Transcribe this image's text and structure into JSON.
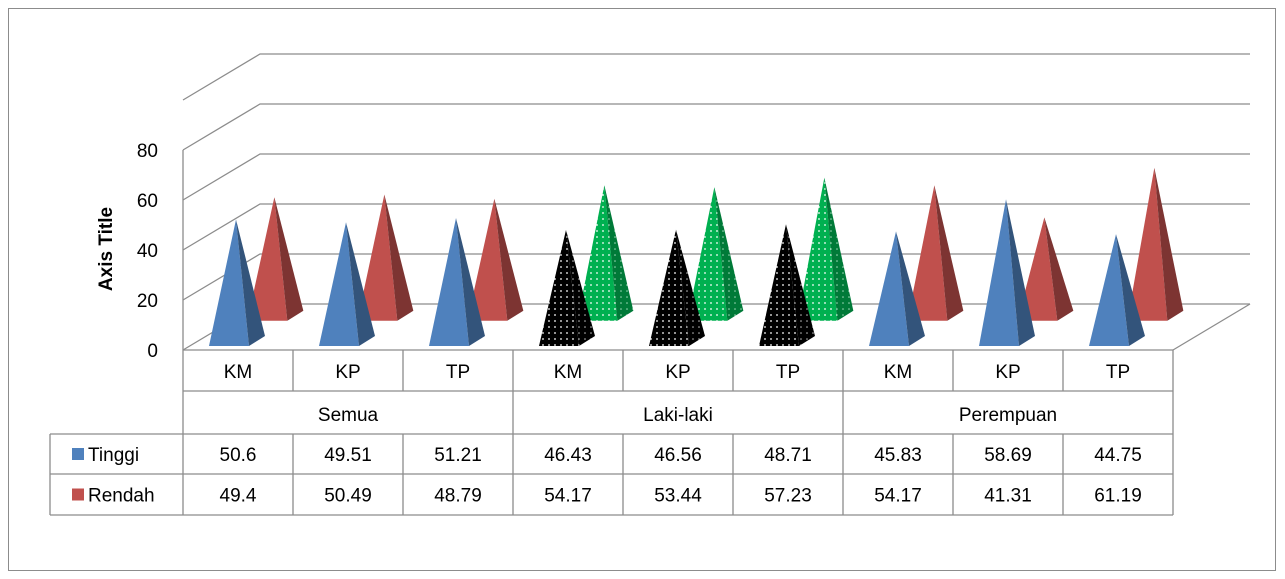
{
  "chart_data": {
    "type": "bar",
    "bar_shape": "3d-pyramid",
    "ylabel": "Axis Title",
    "ylim": [
      0,
      80
    ],
    "yticks": [
      0,
      20,
      40,
      60,
      80
    ],
    "grid": true,
    "legend": "data-table",
    "groups": [
      {
        "name": "Semua",
        "categories": [
          "KM",
          "KP",
          "TP"
        ]
      },
      {
        "name": "Laki-laki",
        "categories": [
          "KM",
          "KP",
          "TP"
        ]
      },
      {
        "name": "Perempuan",
        "categories": [
          "KM",
          "KP",
          "TP"
        ]
      }
    ],
    "series": [
      {
        "name": "Tinggi",
        "color": "#4F81BD",
        "values": [
          50.6,
          49.51,
          51.21,
          46.43,
          46.56,
          48.71,
          45.83,
          58.69,
          44.75
        ]
      },
      {
        "name": "Rendah",
        "color": "#C0504D",
        "values": [
          49.4,
          50.49,
          48.79,
          54.17,
          53.44,
          57.23,
          54.17,
          41.31,
          61.19
        ]
      }
    ],
    "value_labels": [
      [
        "50.6",
        "49.51",
        "51.21",
        "46.43",
        "46.56",
        "48.71",
        "45.83",
        "58.69",
        "44.75"
      ],
      [
        "49.4",
        "50.49",
        "48.79",
        "54.17",
        "53.44",
        "57.23",
        "54.17",
        "41.31",
        "61.19"
      ]
    ],
    "highlight_group": {
      "index": 1,
      "series_colors": [
        "#000000",
        "#00B050"
      ],
      "pattern": "dots"
    }
  }
}
